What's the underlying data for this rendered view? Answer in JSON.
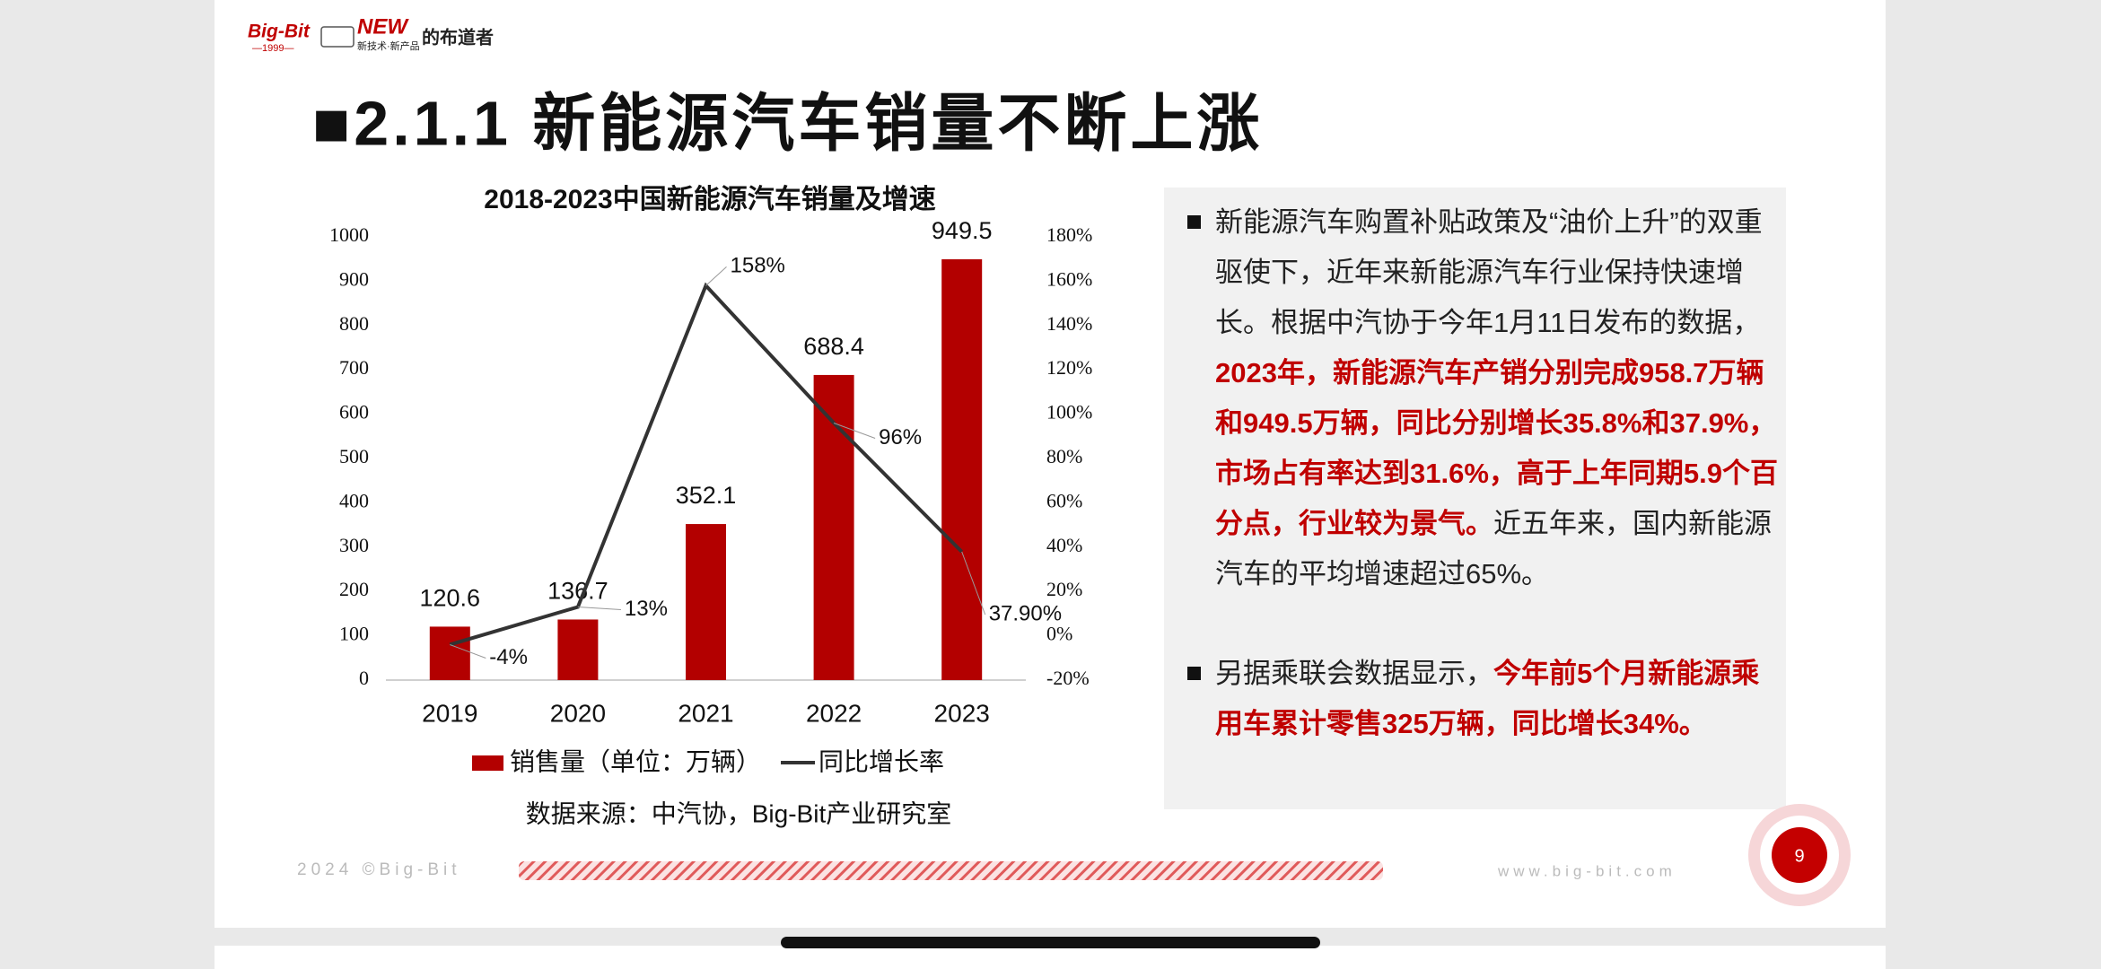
{
  "logo": {
    "brand": "Big-Bit",
    "year": "—1999—",
    "badge": "NEW",
    "badge_sub": "新技术·新产品",
    "slogan": "的布道者"
  },
  "title": "■2.1.1 新能源汽车销量不断上涨",
  "chart_data": {
    "type": "bar",
    "title": "2018-2023中国新能源汽车销量及增速",
    "categories": [
      "2019",
      "2020",
      "2021",
      "2022",
      "2023"
    ],
    "series": [
      {
        "name": "销售量（单位：万辆）",
        "type": "bar",
        "color": "#b30000",
        "values": [
          120.6,
          136.7,
          352.1,
          688.4,
          949.5
        ]
      },
      {
        "name": "同比增长率",
        "type": "line",
        "axis": "y2",
        "color": "#333333",
        "values": [
          -4,
          13,
          158,
          96,
          37.9
        ],
        "value_labels": [
          "-4%",
          "13%",
          "158%",
          "96%",
          "37.90%"
        ]
      }
    ],
    "ylim": [
      0,
      1000
    ],
    "yticks": [
      0,
      100,
      200,
      300,
      400,
      500,
      600,
      700,
      800,
      900,
      1000
    ],
    "y2lim": [
      -20,
      180
    ],
    "y2ticks": [
      {
        "value": -20,
        "label": "-20%"
      },
      {
        "value": 0,
        "label": "0%"
      },
      {
        "value": 20,
        "label": "20%"
      },
      {
        "value": 40,
        "label": "40%"
      },
      {
        "value": 60,
        "label": "60%"
      },
      {
        "value": 80,
        "label": "80%"
      },
      {
        "value": 100,
        "label": "100%"
      },
      {
        "value": 120,
        "label": "120%"
      },
      {
        "value": 140,
        "label": "140%"
      },
      {
        "value": 160,
        "label": "160%"
      },
      {
        "value": 180,
        "label": "180%"
      }
    ],
    "grid": false,
    "legend": "bottom",
    "source": "数据来源：中汽协，Big-Bit产业研究室"
  },
  "bullets": [
    {
      "segments": [
        {
          "text": "新能源汽车购置补贴政策及“油价上升”的双重驱使下，近年来新能源汽车行业保持快速增长。根据中汽协于今年1月11日发布的数据，",
          "style": "normal"
        },
        {
          "text": "2023年，新能源汽车产销分别完成958.7万辆和949.5万辆，同比分别增长35.8%和37.9%，市场占有率达到31.6%，高于上年同期5.9个百分点，行业较为景气。",
          "style": "highlight"
        },
        {
          "text": "近五年来，国内新能源汽车的平均增速超过65%。",
          "style": "normal"
        }
      ]
    },
    {
      "segments": [
        {
          "text": "另据乘联会数据显示，",
          "style": "normal"
        },
        {
          "text": "今年前5个月新能源乘用车累计零售325万辆，同比增长34%。",
          "style": "highlight"
        }
      ]
    }
  ],
  "footer": {
    "left": "2024 ©Big-Bit",
    "right": "www.big-bit.com"
  },
  "page_number": 9
}
